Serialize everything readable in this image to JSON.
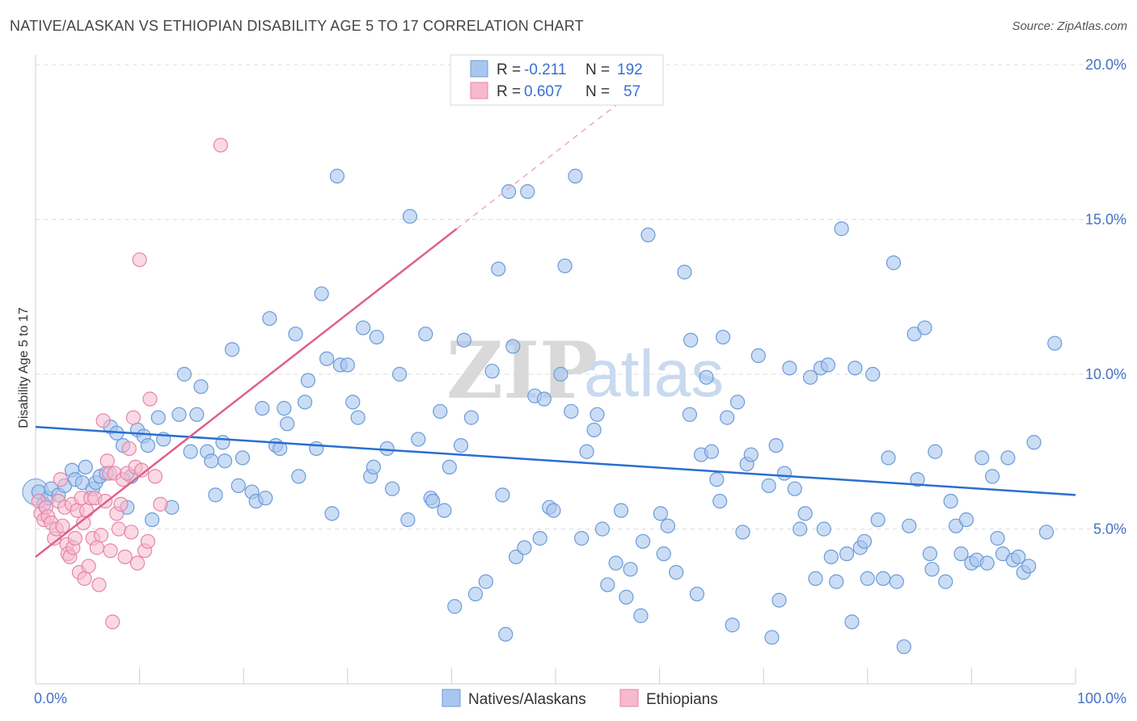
{
  "title": "NATIVE/ALASKAN VS ETHIOPIAN DISABILITY AGE 5 TO 17 CORRELATION CHART",
  "source": "Source: ZipAtlas.com",
  "watermark": {
    "zip": "ZIP",
    "atlas": "atlas"
  },
  "legend": {
    "r_label": "R =",
    "n_label": "N =",
    "series": [
      {
        "r": "-0.211",
        "n": "192"
      },
      {
        "r": "0.607",
        "n": "57"
      }
    ]
  },
  "bottom_legend": [
    "Natives/Alaskans",
    "Ethiopians"
  ],
  "colors": {
    "natives_fill": "#a9c7ee",
    "natives_stroke": "#6b9bd8",
    "natives_line": "#2a6fd0",
    "ethiopians_fill": "#f6b9cd",
    "ethiopians_stroke": "#e884a6",
    "ethiopians_line": "#e0608a"
  },
  "chart_data": {
    "type": "scatter",
    "ylabel": "Disability Age 5 to 17",
    "x_ticks": [
      "0.0%",
      "100.0%"
    ],
    "y_ticks": [
      "5.0%",
      "10.0%",
      "15.0%",
      "20.0%"
    ],
    "xlim": [
      0,
      100
    ],
    "ylim": [
      0,
      20
    ],
    "grid": true,
    "series": [
      {
        "name": "Natives/Alaskans",
        "trend": {
          "x": [
            0,
            100
          ],
          "y": [
            8.3,
            6.1
          ]
        },
        "points": [
          [
            0.3,
            6.2
          ],
          [
            0.8,
            5.8
          ],
          [
            1.2,
            6.0
          ],
          [
            1.5,
            6.3
          ],
          [
            2.2,
            6.1
          ],
          [
            2.8,
            6.4
          ],
          [
            3.5,
            6.9
          ],
          [
            3.8,
            6.6
          ],
          [
            4.5,
            6.5
          ],
          [
            4.8,
            7.0
          ],
          [
            5.5,
            6.3
          ],
          [
            5.8,
            6.5
          ],
          [
            6.2,
            6.7
          ],
          [
            6.8,
            6.8
          ],
          [
            7.2,
            8.3
          ],
          [
            7.8,
            8.1
          ],
          [
            8.4,
            7.7
          ],
          [
            9.2,
            6.7
          ],
          [
            8.8,
            5.7
          ],
          [
            9.8,
            8.2
          ],
          [
            10.4,
            8.0
          ],
          [
            10.8,
            7.7
          ],
          [
            11.2,
            5.3
          ],
          [
            11.8,
            8.6
          ],
          [
            12.3,
            7.9
          ],
          [
            13.1,
            5.7
          ],
          [
            13.8,
            8.7
          ],
          [
            14.3,
            10.0
          ],
          [
            14.9,
            7.5
          ],
          [
            15.5,
            8.7
          ],
          [
            15.9,
            9.6
          ],
          [
            16.5,
            7.5
          ],
          [
            16.9,
            7.2
          ],
          [
            17.3,
            6.1
          ],
          [
            18.0,
            7.8
          ],
          [
            18.2,
            7.2
          ],
          [
            18.9,
            10.8
          ],
          [
            19.5,
            6.4
          ],
          [
            19.9,
            7.3
          ],
          [
            20.8,
            6.2
          ],
          [
            21.2,
            5.9
          ],
          [
            21.8,
            8.9
          ],
          [
            22.1,
            6.0
          ],
          [
            22.5,
            11.8
          ],
          [
            23.1,
            7.7
          ],
          [
            23.5,
            7.6
          ],
          [
            23.9,
            8.9
          ],
          [
            24.2,
            8.4
          ],
          [
            25.0,
            11.3
          ],
          [
            25.3,
            6.7
          ],
          [
            25.9,
            9.1
          ],
          [
            26.2,
            9.8
          ],
          [
            27.0,
            7.6
          ],
          [
            27.5,
            12.6
          ],
          [
            28.0,
            10.5
          ],
          [
            28.5,
            5.5
          ],
          [
            29.0,
            16.4
          ],
          [
            29.3,
            10.3
          ],
          [
            30.0,
            10.3
          ],
          [
            30.5,
            9.1
          ],
          [
            31.0,
            8.6
          ],
          [
            31.5,
            11.5
          ],
          [
            32.2,
            6.7
          ],
          [
            32.5,
            7.0
          ],
          [
            32.8,
            11.2
          ],
          [
            33.8,
            7.6
          ],
          [
            34.3,
            6.3
          ],
          [
            35.0,
            10.0
          ],
          [
            35.8,
            5.3
          ],
          [
            36.0,
            15.1
          ],
          [
            36.8,
            7.9
          ],
          [
            37.5,
            11.3
          ],
          [
            38.0,
            6.0
          ],
          [
            38.2,
            5.9
          ],
          [
            38.9,
            8.8
          ],
          [
            39.3,
            5.6
          ],
          [
            39.8,
            7.0
          ],
          [
            40.3,
            2.5
          ],
          [
            40.9,
            7.7
          ],
          [
            41.2,
            11.1
          ],
          [
            41.9,
            8.6
          ],
          [
            42.3,
            2.9
          ],
          [
            43.3,
            3.3
          ],
          [
            43.9,
            10.1
          ],
          [
            44.5,
            13.4
          ],
          [
            44.9,
            6.1
          ],
          [
            45.2,
            1.6
          ],
          [
            45.5,
            15.9
          ],
          [
            45.9,
            10.9
          ],
          [
            46.2,
            4.1
          ],
          [
            47.0,
            4.4
          ],
          [
            47.3,
            15.9
          ],
          [
            48.0,
            9.3
          ],
          [
            48.5,
            4.7
          ],
          [
            48.9,
            9.2
          ],
          [
            49.4,
            5.7
          ],
          [
            49.8,
            5.6
          ],
          [
            50.5,
            10.0
          ],
          [
            50.9,
            13.5
          ],
          [
            51.5,
            8.8
          ],
          [
            51.9,
            16.4
          ],
          [
            52.5,
            4.7
          ],
          [
            53.0,
            7.5
          ],
          [
            53.7,
            8.2
          ],
          [
            54.0,
            8.7
          ],
          [
            54.5,
            5.0
          ],
          [
            55.0,
            3.2
          ],
          [
            55.8,
            3.9
          ],
          [
            56.3,
            5.6
          ],
          [
            56.8,
            2.8
          ],
          [
            57.2,
            3.7
          ],
          [
            58.2,
            2.2
          ],
          [
            58.4,
            4.6
          ],
          [
            58.9,
            14.5
          ],
          [
            60.1,
            5.5
          ],
          [
            60.4,
            4.2
          ],
          [
            60.8,
            5.1
          ],
          [
            61.6,
            3.6
          ],
          [
            62.4,
            13.3
          ],
          [
            62.9,
            8.7
          ],
          [
            63.0,
            11.1
          ],
          [
            63.6,
            2.9
          ],
          [
            64.0,
            7.4
          ],
          [
            64.5,
            9.9
          ],
          [
            65.0,
            7.5
          ],
          [
            65.5,
            6.6
          ],
          [
            65.8,
            5.9
          ],
          [
            66.1,
            11.2
          ],
          [
            66.5,
            8.6
          ],
          [
            67.0,
            1.9
          ],
          [
            67.5,
            9.1
          ],
          [
            68.0,
            4.9
          ],
          [
            68.4,
            7.1
          ],
          [
            68.8,
            7.4
          ],
          [
            69.5,
            10.6
          ],
          [
            70.5,
            6.4
          ],
          [
            70.8,
            1.5
          ],
          [
            71.2,
            7.7
          ],
          [
            71.5,
            2.7
          ],
          [
            72.0,
            6.8
          ],
          [
            72.5,
            10.2
          ],
          [
            73.0,
            6.3
          ],
          [
            73.5,
            5.0
          ],
          [
            74.0,
            5.5
          ],
          [
            74.5,
            9.9
          ],
          [
            75.0,
            3.4
          ],
          [
            75.5,
            10.2
          ],
          [
            75.8,
            5.0
          ],
          [
            76.2,
            10.3
          ],
          [
            76.5,
            4.1
          ],
          [
            77.0,
            3.3
          ],
          [
            77.5,
            14.7
          ],
          [
            78.0,
            4.2
          ],
          [
            78.5,
            2.0
          ],
          [
            78.8,
            10.2
          ],
          [
            79.3,
            4.4
          ],
          [
            79.7,
            4.6
          ],
          [
            80.0,
            3.4
          ],
          [
            80.5,
            10.0
          ],
          [
            81.0,
            5.3
          ],
          [
            81.5,
            3.4
          ],
          [
            82.0,
            7.3
          ],
          [
            82.5,
            13.6
          ],
          [
            82.8,
            3.3
          ],
          [
            83.5,
            1.2
          ],
          [
            84.0,
            5.1
          ],
          [
            84.5,
            11.3
          ],
          [
            84.8,
            6.6
          ],
          [
            85.5,
            11.5
          ],
          [
            86.0,
            4.2
          ],
          [
            86.2,
            3.7
          ],
          [
            86.5,
            7.5
          ],
          [
            87.5,
            3.3
          ],
          [
            88.0,
            5.9
          ],
          [
            88.5,
            5.1
          ],
          [
            89.0,
            4.2
          ],
          [
            89.5,
            5.3
          ],
          [
            90.0,
            3.9
          ],
          [
            90.5,
            4.0
          ],
          [
            91.0,
            7.3
          ],
          [
            91.5,
            3.9
          ],
          [
            92.0,
            6.7
          ],
          [
            92.5,
            4.7
          ],
          [
            93.0,
            4.2
          ],
          [
            93.5,
            7.3
          ],
          [
            94.0,
            4.0
          ],
          [
            94.5,
            4.1
          ],
          [
            95.0,
            3.6
          ],
          [
            95.5,
            3.8
          ],
          [
            96.0,
            7.8
          ],
          [
            97.2,
            4.9
          ],
          [
            98.0,
            11.0
          ]
        ]
      },
      {
        "name": "Ethiopians",
        "trend": {
          "x": [
            0,
            40.5
          ],
          "y": [
            4.1,
            14.7
          ]
        },
        "trend_dashed": {
          "x": [
            40.5,
            57.0
          ],
          "y": [
            14.7,
            19.0
          ]
        },
        "points": [
          [
            0.3,
            5.9
          ],
          [
            0.5,
            5.5
          ],
          [
            0.8,
            5.3
          ],
          [
            1.0,
            5.7
          ],
          [
            1.2,
            5.4
          ],
          [
            1.5,
            5.2
          ],
          [
            1.8,
            4.7
          ],
          [
            2.0,
            5.0
          ],
          [
            2.2,
            5.9
          ],
          [
            2.4,
            6.6
          ],
          [
            2.6,
            5.1
          ],
          [
            2.8,
            5.7
          ],
          [
            3.0,
            4.5
          ],
          [
            3.1,
            4.2
          ],
          [
            3.3,
            4.1
          ],
          [
            3.5,
            5.8
          ],
          [
            3.6,
            4.4
          ],
          [
            3.8,
            4.7
          ],
          [
            4.0,
            5.6
          ],
          [
            4.2,
            3.6
          ],
          [
            4.4,
            6.0
          ],
          [
            4.6,
            5.2
          ],
          [
            4.7,
            3.4
          ],
          [
            4.9,
            5.6
          ],
          [
            5.1,
            3.8
          ],
          [
            5.3,
            6.0
          ],
          [
            5.5,
            4.7
          ],
          [
            5.7,
            6.0
          ],
          [
            5.9,
            4.4
          ],
          [
            6.1,
            3.2
          ],
          [
            6.3,
            4.8
          ],
          [
            6.5,
            8.5
          ],
          [
            6.7,
            5.9
          ],
          [
            6.9,
            7.2
          ],
          [
            7.1,
            6.8
          ],
          [
            7.2,
            4.3
          ],
          [
            7.4,
            2.0
          ],
          [
            7.6,
            6.8
          ],
          [
            7.8,
            5.5
          ],
          [
            8.0,
            5.0
          ],
          [
            8.2,
            5.8
          ],
          [
            8.4,
            6.6
          ],
          [
            8.6,
            4.1
          ],
          [
            8.8,
            6.8
          ],
          [
            9.0,
            7.6
          ],
          [
            9.2,
            4.9
          ],
          [
            9.4,
            8.6
          ],
          [
            9.6,
            7.0
          ],
          [
            9.8,
            3.9
          ],
          [
            10.0,
            13.7
          ],
          [
            10.2,
            6.9
          ],
          [
            10.5,
            4.3
          ],
          [
            10.8,
            4.6
          ],
          [
            11.0,
            9.2
          ],
          [
            11.5,
            6.7
          ],
          [
            12.0,
            5.8
          ],
          [
            17.8,
            17.4
          ]
        ]
      }
    ]
  }
}
